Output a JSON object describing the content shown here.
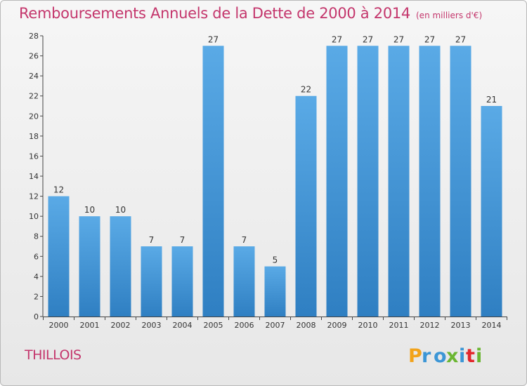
{
  "title": "Remboursements Annuels de la Dette de 2000 à 2014",
  "unit_label": "(en milliers d'€)",
  "commune": "THILLOIS",
  "brand": "Proxiti",
  "colors": {
    "bar": "#5aaae6",
    "bar_dark": "#2f7fc2",
    "title": "#c4366c"
  },
  "chart_data": {
    "type": "bar",
    "title": "Remboursements Annuels de la Dette de 2000 à 2014",
    "subtitle": "(en milliers d'€)",
    "categories": [
      "2000",
      "2001",
      "2002",
      "2003",
      "2004",
      "2005",
      "2006",
      "2007",
      "2008",
      "2009",
      "2010",
      "2011",
      "2012",
      "2013",
      "2014"
    ],
    "values": [
      12,
      10,
      10,
      7,
      7,
      27,
      7,
      5,
      22,
      27,
      27,
      27,
      27,
      27,
      21
    ],
    "ylim": [
      0,
      28
    ],
    "yticks": [
      0,
      2,
      4,
      6,
      8,
      10,
      12,
      14,
      16,
      18,
      20,
      22,
      24,
      26,
      28
    ],
    "grid": false,
    "data_labels": true
  }
}
